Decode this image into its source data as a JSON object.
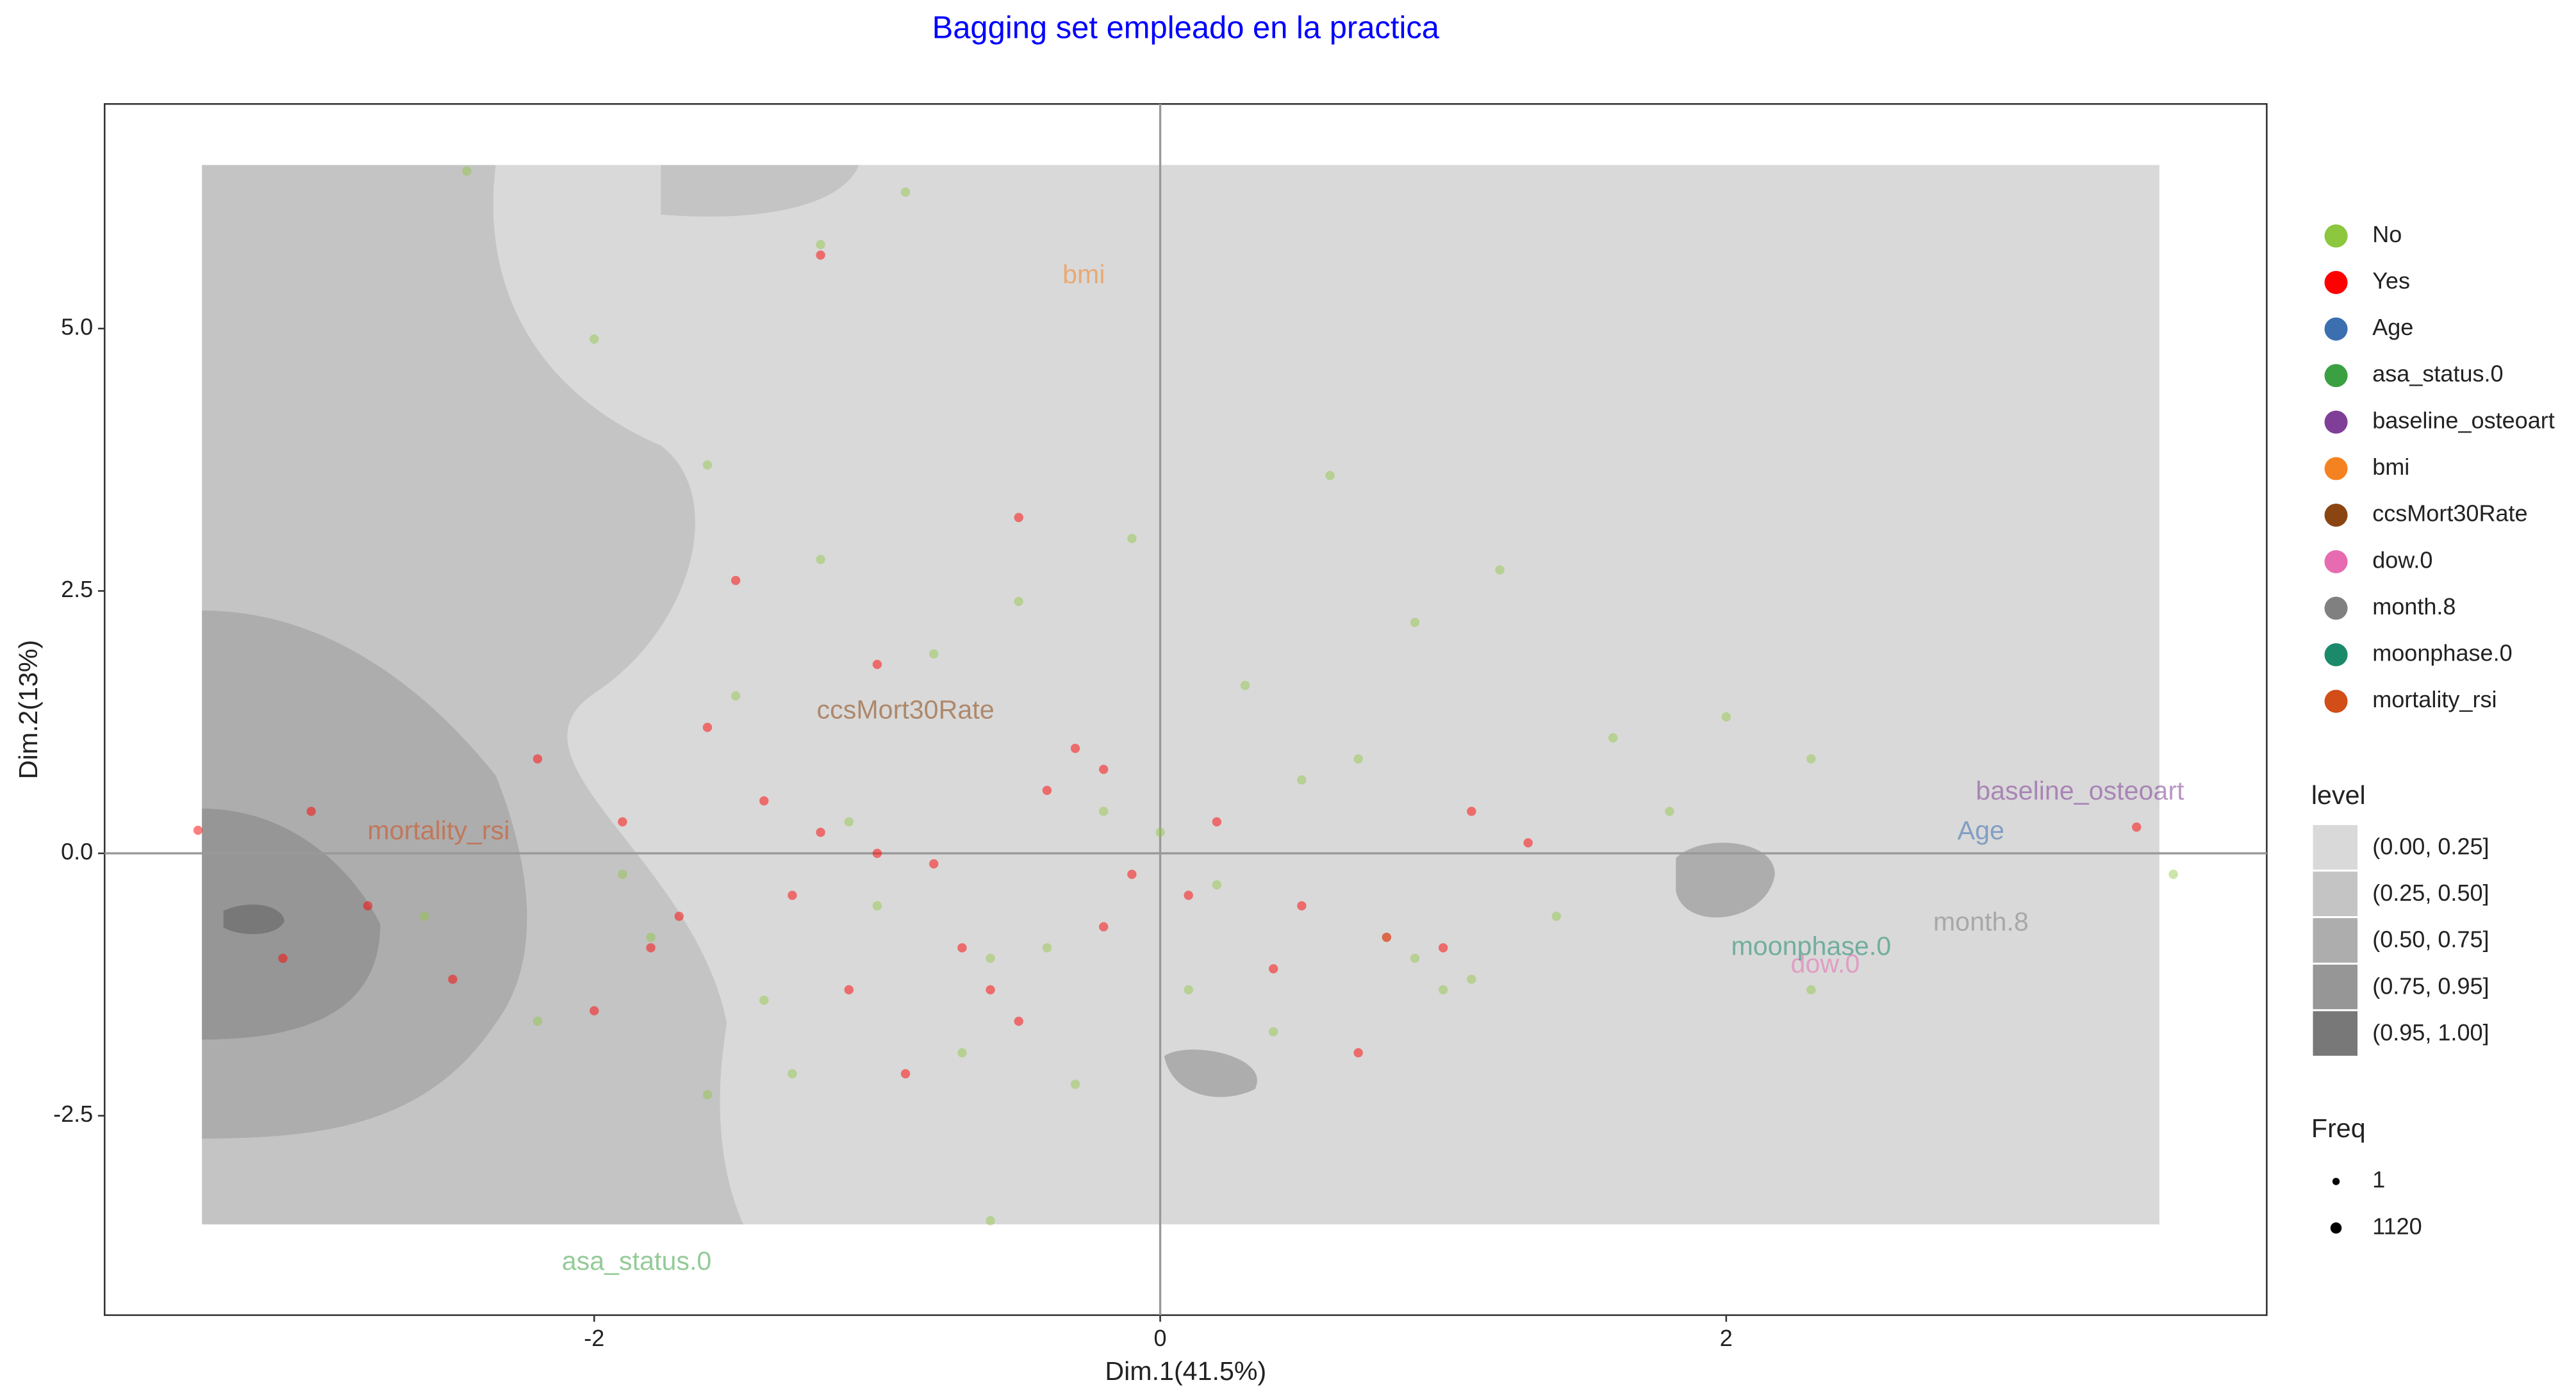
{
  "chart_data": {
    "type": "scatter",
    "title": "Bagging set empleado en la practica",
    "x_label": "Dim.1(41.5%)",
    "y_label": "Dim.2(13%)",
    "xlim": [
      -3.73,
      3.91
    ],
    "ylim": [
      -4.4,
      7.14
    ],
    "xticks": [
      -2,
      0,
      2
    ],
    "yticks": [
      {
        "value": -2.5,
        "label": "-2.5"
      },
      {
        "value": 0,
        "label": "0.0"
      },
      {
        "value": 2.5,
        "label": "2.5"
      },
      {
        "value": 5,
        "label": "5.0"
      }
    ],
    "series": [
      {
        "name": "No",
        "color": "#8dc63f",
        "x": [
          -2.45,
          -2.0,
          -1.6,
          -1.2,
          -0.9,
          -0.5,
          -0.1,
          0.3,
          0.6,
          0.9,
          1.2,
          1.6,
          2.0,
          2.3,
          -1.8,
          -1.4,
          -1.0,
          -0.6,
          -0.2,
          0.2,
          0.5,
          0.8,
          1.1,
          -2.2,
          -1.5,
          -0.8,
          0.0,
          0.7,
          1.4,
          -1.3,
          -0.7,
          -0.3,
          0.4,
          1.0,
          -1.9,
          -1.1,
          -0.4,
          0.1,
          0.9,
          1.8,
          -0.6,
          -1.2,
          2.3,
          -1.6,
          -2.6,
          3.58
        ],
        "y": [
          6.5,
          4.9,
          3.7,
          5.8,
          6.3,
          2.4,
          3.0,
          1.6,
          3.6,
          2.2,
          2.7,
          1.1,
          1.3,
          0.9,
          -0.8,
          -1.4,
          -0.5,
          -1.0,
          0.4,
          -0.3,
          0.7,
          -0.8,
          -1.2,
          -1.6,
          1.5,
          1.9,
          0.2,
          0.9,
          -0.6,
          -2.1,
          -1.9,
          -2.2,
          -1.7,
          -1.3,
          -0.2,
          0.3,
          -0.9,
          -1.3,
          -1.0,
          0.4,
          -3.5,
          2.8,
          -1.3,
          -2.3,
          -0.6,
          -0.2
        ]
      },
      {
        "name": "Yes",
        "color": "#ff0000",
        "x": [
          -3.4,
          -3.1,
          -2.8,
          -2.5,
          -2.2,
          -1.9,
          -1.6,
          -1.3,
          -1.0,
          -0.7,
          -0.4,
          -0.1,
          0.2,
          0.5,
          0.8,
          1.1,
          1.3,
          -2.0,
          -1.7,
          -1.4,
          -1.1,
          -0.8,
          -0.5,
          -0.2,
          0.1,
          0.4,
          0.7,
          1.0,
          -1.5,
          -1.2,
          -0.9,
          -0.6,
          -0.3,
          -1.8,
          -1.0,
          -0.2,
          -3.0,
          -1.2,
          -0.5,
          3.45
        ],
        "y": [
          0.22,
          -1.0,
          -0.5,
          -1.2,
          0.9,
          0.3,
          1.2,
          -0.4,
          0.0,
          -0.9,
          0.6,
          -0.2,
          0.3,
          -0.5,
          -0.8,
          0.4,
          0.1,
          -1.5,
          -0.6,
          0.5,
          -1.3,
          -0.1,
          -1.6,
          0.8,
          -0.4,
          -1.1,
          -1.9,
          -0.9,
          2.6,
          0.2,
          -2.1,
          -1.3,
          1.0,
          -0.9,
          1.8,
          -0.7,
          0.4,
          5.7,
          3.2,
          0.25
        ]
      }
    ],
    "variables": [
      {
        "name": "Age",
        "color": "#3b6fb0",
        "x": 2.9,
        "y": 0.2
      },
      {
        "name": "asa_status.0",
        "color": "#3aa041",
        "x": -1.85,
        "y": -3.9
      },
      {
        "name": "baseline_osteoart",
        "color": "#7f3f98",
        "x": 3.25,
        "y": 0.58
      },
      {
        "name": "bmi",
        "color": "#f58220",
        "x": -0.27,
        "y": 5.5
      },
      {
        "name": "ccsMort30Rate",
        "color": "#8b4513",
        "x": -0.9,
        "y": 1.35
      },
      {
        "name": "dow.0",
        "color": "#e76bb0",
        "x": 2.35,
        "y": -1.07
      },
      {
        "name": "month.8",
        "color": "#808080",
        "x": 2.9,
        "y": -0.67
      },
      {
        "name": "moonphase.0",
        "color": "#1b8a6b",
        "x": 2.3,
        "y": -0.9
      },
      {
        "name": "mortality_rsi",
        "color": "#d24d17",
        "x": -2.55,
        "y": 0.2
      }
    ],
    "level_legend": {
      "title": "level",
      "items": [
        {
          "label": "(0.00, 0.25]",
          "color": "#d9d9d9"
        },
        {
          "label": "(0.25, 0.50]",
          "color": "#c4c4c4"
        },
        {
          "label": "(0.50, 0.75]",
          "color": "#adadad"
        },
        {
          "label": "(0.75, 0.95]",
          "color": "#969696"
        },
        {
          "label": "(0.95, 1.00]",
          "color": "#787878"
        }
      ]
    },
    "size_legend": {
      "title": "Freq",
      "sizes": [
        1,
        1120
      ]
    }
  }
}
